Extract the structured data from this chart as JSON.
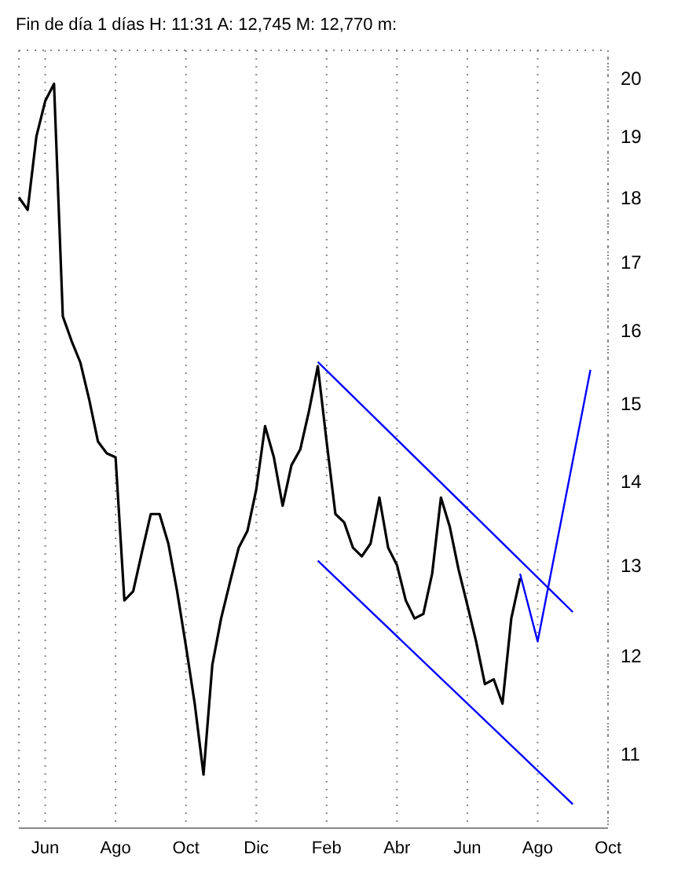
{
  "chart_data": {
    "type": "line",
    "title": "Fin de día 1 días  H: 11:31  A: 12,745  M: 12,770  m:",
    "log": "y",
    "grid": true,
    "marker": "none",
    "line_style": "solid",
    "categories": [
      null,
      null,
      null,
      "Jun",
      null,
      null,
      null,
      null,
      null,
      null,
      null,
      "Ago",
      null,
      null,
      null,
      null,
      null,
      null,
      null,
      "Oct",
      null,
      null,
      null,
      null,
      null,
      null,
      null,
      "Dic",
      null,
      null,
      null,
      null,
      null,
      null,
      null,
      "Feb",
      null,
      null,
      null,
      null,
      null,
      null,
      null,
      "Abr",
      null,
      null,
      null,
      null,
      null,
      null,
      null,
      "Jun",
      null,
      null,
      null,
      null,
      null,
      null,
      null,
      "Ago",
      null,
      null,
      null,
      null,
      null,
      null,
      null,
      "Oct"
    ],
    "ylim": [
      10.3,
      20.5
    ],
    "yticks": [
      11,
      12,
      13,
      14,
      15,
      16,
      17,
      18,
      19,
      20
    ],
    "series": [
      {
        "color": "#000000",
        "values": [
          18.0,
          17.8,
          19.0,
          19.6,
          19.9,
          16.2,
          15.85,
          15.55,
          15.05,
          14.5,
          14.35,
          14.3,
          12.6,
          12.7,
          13.15,
          13.6,
          13.6,
          13.25,
          12.7,
          12.1,
          11.5,
          10.8,
          11.9,
          12.4,
          12.8,
          13.2,
          13.4,
          13.9,
          14.7,
          14.3,
          13.7,
          14.2,
          14.4,
          14.9,
          15.5,
          14.5,
          13.6,
          13.5,
          13.2,
          13.1,
          13.25,
          13.8,
          13.2,
          13.0,
          12.6,
          12.4,
          12.45,
          12.9,
          13.8,
          13.45,
          12.95,
          12.55,
          12.15,
          11.7,
          11.75,
          11.5,
          12.4,
          12.85,
          null,
          null,
          null,
          null,
          null,
          null,
          null,
          null,
          null,
          null
        ]
      },
      {
        "color": "#0000ff",
        "values": [
          null,
          null,
          null,
          null,
          null,
          null,
          null,
          null,
          null,
          null,
          null,
          null,
          null,
          null,
          null,
          null,
          null,
          null,
          null,
          null,
          null,
          null,
          null,
          null,
          null,
          null,
          null,
          null,
          null,
          null,
          null,
          null,
          null,
          null,
          null,
          null,
          null,
          null,
          null,
          null,
          null,
          null,
          null,
          null,
          null,
          null,
          null,
          null,
          null,
          null,
          null,
          null,
          null,
          null,
          null,
          null,
          null,
          12.9,
          null,
          12.15,
          null,
          null,
          null,
          null,
          null,
          15.45,
          null,
          null
        ]
      },
      {
        "color": "#0000ff",
        "values": [
          null,
          null,
          null,
          null,
          null,
          null,
          null,
          null,
          null,
          null,
          null,
          null,
          null,
          null,
          null,
          null,
          null,
          null,
          null,
          null,
          null,
          null,
          null,
          null,
          null,
          null,
          null,
          null,
          null,
          null,
          null,
          null,
          null,
          null,
          15.56,
          null,
          null,
          null,
          null,
          null,
          null,
          null,
          null,
          null,
          null,
          null,
          null,
          null,
          null,
          null,
          null,
          null,
          null,
          null,
          null,
          null,
          null,
          null,
          null,
          null,
          null,
          null,
          null,
          12.47,
          null,
          null,
          null,
          null
        ]
      },
      {
        "color": "#0000ff",
        "values": [
          null,
          null,
          null,
          null,
          null,
          null,
          null,
          null,
          null,
          null,
          null,
          null,
          null,
          null,
          null,
          null,
          null,
          null,
          null,
          null,
          null,
          null,
          null,
          null,
          null,
          null,
          null,
          null,
          null,
          null,
          null,
          null,
          null,
          null,
          13.05,
          null,
          null,
          null,
          null,
          null,
          null,
          null,
          null,
          null,
          null,
          null,
          null,
          null,
          null,
          null,
          null,
          null,
          null,
          null,
          null,
          null,
          null,
          null,
          null,
          null,
          null,
          null,
          null,
          10.52,
          null,
          null,
          null,
          null
        ]
      }
    ]
  }
}
